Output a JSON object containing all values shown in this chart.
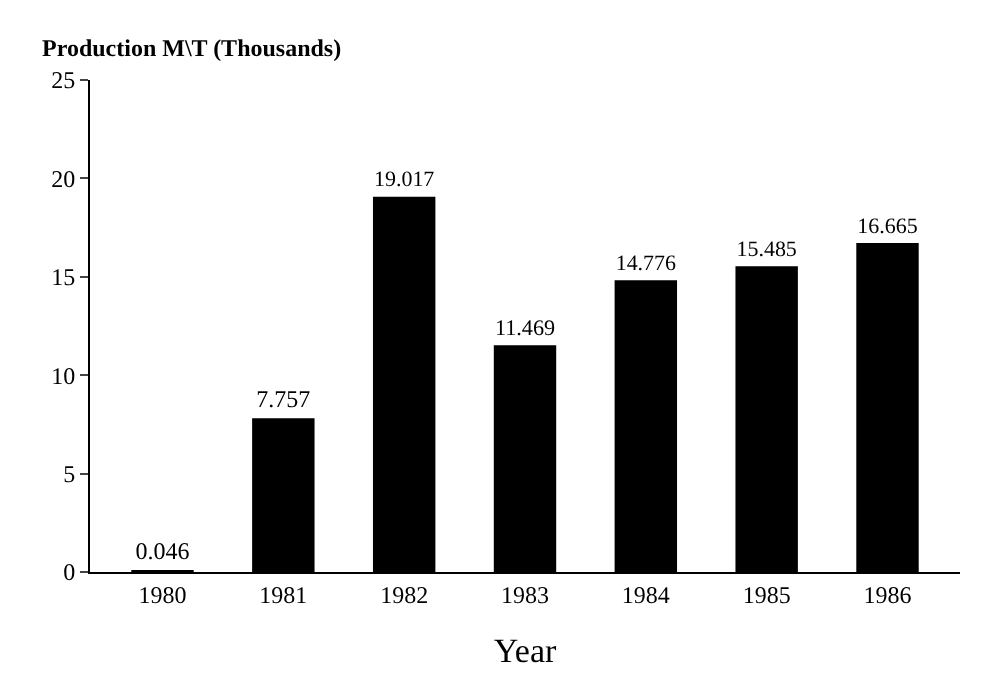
{
  "chart_data": {
    "type": "bar",
    "ylabel": "Production M\\T (Thousands)",
    "xlabel": "Year",
    "categories": [
      "1980",
      "1981",
      "1982",
      "1983",
      "1984",
      "1985",
      "1986"
    ],
    "values": [
      0.046,
      7.757,
      19.017,
      11.469,
      14.776,
      15.485,
      16.665
    ],
    "color": "#000000",
    "ylim": [
      0,
      25
    ],
    "yticks": [
      0,
      5,
      10,
      15,
      20,
      25
    ],
    "data_labels": true
  }
}
